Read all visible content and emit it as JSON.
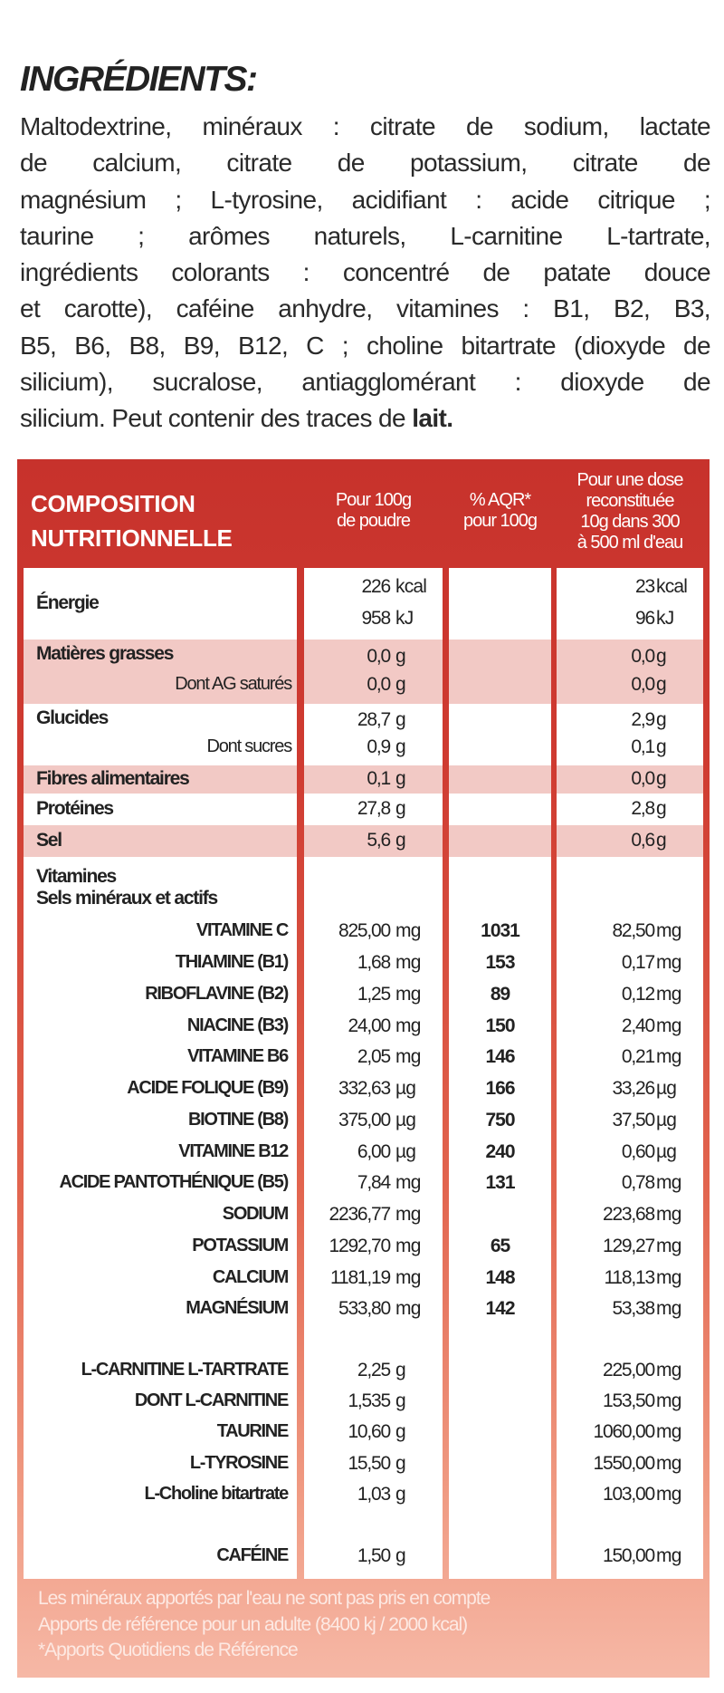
{
  "ingredients": {
    "title": "INGRÉDIENTS:",
    "lines": [
      "Maltodextrine, minéraux : citrate de sodium, lactate",
      "de calcium, citrate de potassium, citrate de",
      "magnésium ; L-tyrosine, acidifiant : acide citrique ;",
      "taurine ; arômes naturels, L-carnitine L-tartrate,",
      "ingrédients colorants : concentré de patate douce",
      "et carotte), caféine anhydre, vitamines : B1, B2, B3,",
      "B5, B6, B8, B9, B12, C ; choline bitartrate (dioxyde de",
      "silicium), sucralose, antiagglomérant : dioxyde de"
    ],
    "last_line": "silicium. Peut contenir des traces de ",
    "allergen": "lait."
  },
  "table": {
    "title_line1": "COMPOSITION",
    "title_line2": "NUTRITIONNELLE",
    "col_per100": [
      "Pour 100g",
      "de poudre"
    ],
    "col_aqr": [
      "% AQR*",
      "pour 100g"
    ],
    "col_dose": [
      "Pour une dose",
      "reconstituée",
      "10g dans 300",
      "à 500 ml d'eau"
    ],
    "colors": {
      "header": "#c7322c",
      "shade": "#f2c9c5",
      "bottom": "#f6b8a6"
    },
    "nutrition": [
      {
        "label": "Énergie",
        "shade": false,
        "lines": [
          {
            "sub": "",
            "v100": "226",
            "u100": "kcal",
            "vd": "23",
            "ud": "kcal"
          },
          {
            "sub": "",
            "v100": "958",
            "u100": "kJ",
            "vd": "96",
            "ud": "kJ"
          }
        ]
      },
      {
        "label": "Matières grasses",
        "shade": true,
        "lines": [
          {
            "sub": "",
            "v100": "0,0",
            "u100": "g",
            "vd": "0,0",
            "ud": "g"
          },
          {
            "sub": "Dont AG saturés",
            "v100": "0,0",
            "u100": "g",
            "vd": "0,0",
            "ud": "g"
          }
        ]
      },
      {
        "label": "Glucides",
        "shade": false,
        "lines": [
          {
            "sub": "",
            "v100": "28,7",
            "u100": "g",
            "vd": "2,9",
            "ud": "g"
          },
          {
            "sub": "Dont sucres",
            "v100": "0,9",
            "u100": "g",
            "vd": "0,1",
            "ud": "g"
          }
        ]
      },
      {
        "label": "Fibres alimentaires",
        "shade": true,
        "lines": [
          {
            "sub": "",
            "v100": "0,1",
            "u100": "g",
            "vd": "0,0",
            "ud": "g"
          }
        ]
      },
      {
        "label": "Protéines",
        "shade": false,
        "lines": [
          {
            "sub": "",
            "v100": "27,8",
            "u100": "g",
            "vd": "2,8",
            "ud": "g"
          }
        ]
      },
      {
        "label": "Sel",
        "shade": true,
        "lines": [
          {
            "sub": "",
            "v100": "5,6",
            "u100": "g",
            "vd": "0,6",
            "ud": "g"
          }
        ]
      }
    ],
    "section_line1": "Vitamines",
    "section_line2": "Sels minéraux et actifs",
    "vitamins": [
      {
        "name": "VITAMINE C",
        "v100": "825,00",
        "u100": "mg",
        "aqr": "1031",
        "vd": "82,50",
        "ud": "mg"
      },
      {
        "name": "THIAMINE (B1)",
        "v100": "1,68",
        "u100": "mg",
        "aqr": "153",
        "vd": "0,17",
        "ud": "mg"
      },
      {
        "name": "RIBOFLAVINE (B2)",
        "v100": "1,25",
        "u100": "mg",
        "aqr": "89",
        "vd": "0,12",
        "ud": "mg"
      },
      {
        "name": "NIACINE (B3)",
        "v100": "24,00",
        "u100": "mg",
        "aqr": "150",
        "vd": "2,40",
        "ud": "mg"
      },
      {
        "name": "VITAMINE B6",
        "v100": "2,05",
        "u100": "mg",
        "aqr": "146",
        "vd": "0,21",
        "ud": "mg"
      },
      {
        "name": "ACIDE FOLIQUE (B9)",
        "v100": "332,63",
        "u100": "µg",
        "aqr": "166",
        "vd": "33,26",
        "ud": "µg"
      },
      {
        "name": "BIOTINE (B8)",
        "v100": "375,00",
        "u100": "µg",
        "aqr": "750",
        "vd": "37,50",
        "ud": "µg"
      },
      {
        "name": "VITAMINE B12",
        "v100": "6,00",
        "u100": "µg",
        "aqr": "240",
        "vd": "0,60",
        "ud": "µg"
      },
      {
        "name": "ACIDE PANTOTHÉNIQUE (B5)",
        "v100": "7,84",
        "u100": "mg",
        "aqr": "131",
        "vd": "0,78",
        "ud": "mg"
      },
      {
        "name": "SODIUM",
        "v100": "2236,77",
        "u100": "mg",
        "aqr": "",
        "vd": "223,68",
        "ud": "mg"
      },
      {
        "name": "POTASSIUM",
        "v100": "1292,70",
        "u100": "mg",
        "aqr": "65",
        "vd": "129,27",
        "ud": "mg"
      },
      {
        "name": "CALCIUM",
        "v100": "1181,19",
        "u100": "mg",
        "aqr": "148",
        "vd": "118,13",
        "ud": "mg"
      },
      {
        "name": "MAGNÉSIUM",
        "v100": "533,80",
        "u100": "mg",
        "aqr": "142",
        "vd": "53,38",
        "ud": "mg"
      }
    ],
    "actives": [
      {
        "name": "L-CARNITINE L-TARTRATE",
        "v100": "2,25",
        "u100": "g",
        "aqr": "",
        "vd": "225,00",
        "ud": "mg"
      },
      {
        "name": "DONT L-CARNITINE",
        "v100": "1,535",
        "u100": "g",
        "aqr": "",
        "vd": "153,50",
        "ud": "mg"
      },
      {
        "name": "TAURINE",
        "v100": "10,60",
        "u100": "g",
        "aqr": "",
        "vd": "1060,00",
        "ud": "mg"
      },
      {
        "name": "L-TYROSINE",
        "v100": "15,50",
        "u100": "g",
        "aqr": "",
        "vd": "1550,00",
        "ud": "mg"
      },
      {
        "name": "L-Choline bitartrate",
        "v100": "1,03",
        "u100": "g",
        "aqr": "",
        "vd": "103,00",
        "ud": "mg"
      }
    ],
    "caffeine": [
      {
        "name": "CAFÉINE",
        "v100": "1,50",
        "u100": "g",
        "aqr": "",
        "vd": "150,00",
        "ud": "mg"
      }
    ],
    "footnotes": [
      "Les minéraux apportés par l'eau ne sont pas pris en compte",
      "Apports de référence pour un adulte (8400 kj / 2000 kcal)",
      "*Apports Quotidiens de Référence"
    ]
  }
}
